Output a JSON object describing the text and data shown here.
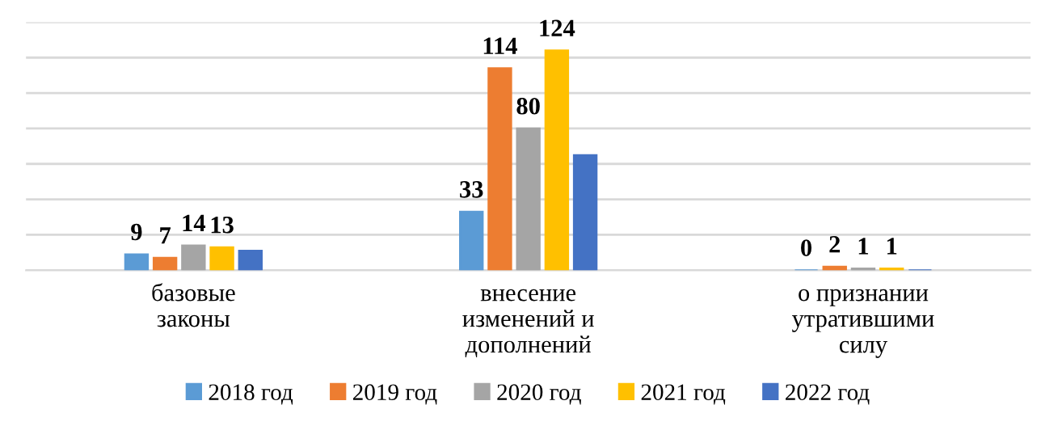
{
  "chart_data": {
    "type": "bar",
    "categories": [
      "базовые законы",
      "внесение изменений и дополнений",
      "о признании утратившими силу"
    ],
    "series": [
      {
        "name": "2018 год",
        "color": "#5b9bd5",
        "values": [
          9,
          33,
          0
        ],
        "value_labels": [
          "9",
          "33",
          "0"
        ]
      },
      {
        "name": "2019 год",
        "color": "#ed7d31",
        "values": [
          7,
          114,
          2
        ],
        "value_labels": [
          "7",
          "114",
          "2"
        ]
      },
      {
        "name": "2020 год",
        "color": "#a5a5a5",
        "values": [
          14,
          80,
          1
        ],
        "value_labels": [
          "14",
          "80",
          "1"
        ]
      },
      {
        "name": "2021 год",
        "color": "#ffc000",
        "values": [
          13,
          124,
          1
        ],
        "value_labels": [
          "13",
          "124",
          "1"
        ]
      },
      {
        "name": "2022 год",
        "color": "#4472c4",
        "values": [
          11,
          65,
          0
        ]
      }
    ],
    "ylim": [
      0,
      140
    ],
    "yticks": [
      {
        "value": 0,
        "label": null
      },
      {
        "value": 20,
        "label": null
      },
      {
        "value": 40,
        "label": null
      },
      {
        "value": 60,
        "label": null
      },
      {
        "value": 80,
        "label": null
      },
      {
        "value": 100,
        "label": null
      },
      {
        "value": 120,
        "label": null
      },
      {
        "value": 140,
        "label": null
      }
    ],
    "grid": "y",
    "legend": "bottom",
    "tick_labels": "x"
  }
}
